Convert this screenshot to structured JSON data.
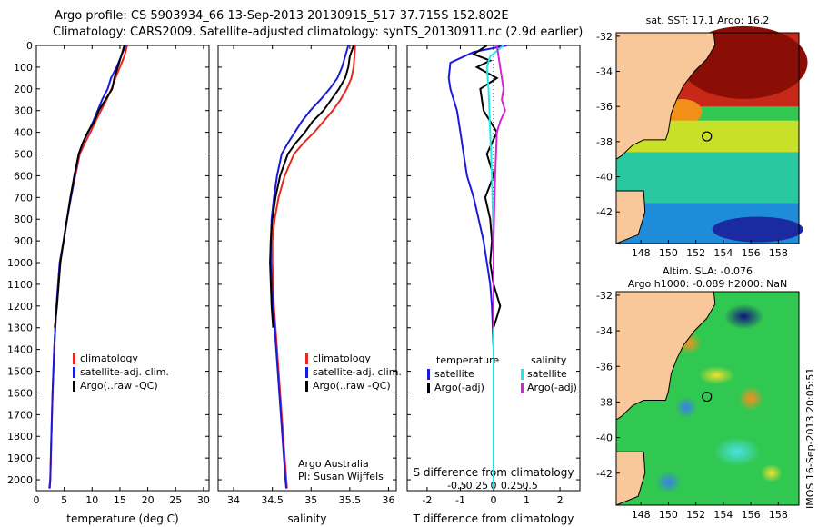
{
  "title_line1": "Argo profile: CS 5903934_66 13-Sep-2013 20130915_517 37.715S 152.802E",
  "title_line2": "Climatology: CARS2009. Satellite-adjusted climatology: synTS_20130911.nc (2.9d earlier)",
  "stamp": "IMOS 16-Sep-2013 20:05:51",
  "colors": {
    "climatology": "#e8281e",
    "satellite": "#1a1adc",
    "argo": "#000000",
    "sat_sal": "#22e8e8",
    "argo_sal": "#d228d2",
    "land": "#f8c89a"
  },
  "map1": {
    "title": "sat. SST: 17.1 Argo: 16.2",
    "ytick_labels": [
      "-32",
      "-34",
      "-36",
      "-38",
      "-40",
      "-42"
    ],
    "xtick_labels": [
      "148",
      "150",
      "152",
      "154",
      "156",
      "158"
    ],
    "argo_lon": 152.8,
    "argo_lat": -37.7
  },
  "map2": {
    "title_line1": "Altim. SLA: -0.076",
    "title_line2": "Argo h1000: -0.089 h2000: NaN",
    "ytick_labels": [
      "-32",
      "-34",
      "-36",
      "-38",
      "-40",
      "-42"
    ],
    "xtick_labels": [
      "148",
      "150",
      "152",
      "154",
      "156",
      "158"
    ],
    "argo_lon": 152.8,
    "argo_lat": -37.7
  },
  "chart_data": [
    {
      "type": "line",
      "xlabel": "temperature (deg C)",
      "xlim": [
        0,
        31
      ],
      "ylim": [
        2050,
        0
      ],
      "xtick_labels": [
        "0",
        "5",
        "10",
        "15",
        "20",
        "25",
        "30"
      ],
      "ytick_labels": [
        "0",
        "100",
        "200",
        "300",
        "400",
        "500",
        "600",
        "700",
        "800",
        "900",
        "1000",
        "1100",
        "1200",
        "1300",
        "1400",
        "1500",
        "1600",
        "1700",
        "1800",
        "1900",
        "2000"
      ],
      "legend": [
        "climatology",
        "satellite-adj. clim.",
        "Argo(..raw -QC)"
      ],
      "series": [
        {
          "name": "climatology",
          "color": "#e8281e",
          "x": [
            16.3,
            15.8,
            15.0,
            14.2,
            13.5,
            12.6,
            11.6,
            10.6,
            9.7,
            8.7,
            7.8,
            7.0,
            6.2,
            5.5,
            4.9,
            4.2,
            3.6,
            3.2,
            2.9,
            2.7,
            2.5,
            2.3
          ],
          "y": [
            0,
            50,
            100,
            150,
            200,
            250,
            300,
            350,
            400,
            450,
            500,
            600,
            700,
            800,
            900,
            1000,
            1200,
            1400,
            1600,
            1800,
            2000,
            2040
          ]
        },
        {
          "name": "satellite-adj. clim.",
          "color": "#1a1adc",
          "x": [
            16.0,
            15.2,
            14.4,
            13.4,
            12.8,
            11.8,
            11.0,
            10.2,
            9.3,
            8.3,
            7.6,
            6.9,
            6.2,
            5.5,
            4.9,
            4.2,
            3.6,
            3.2,
            2.9,
            2.7,
            2.5,
            2.4
          ],
          "y": [
            0,
            50,
            100,
            150,
            200,
            250,
            300,
            350,
            400,
            450,
            500,
            600,
            700,
            800,
            900,
            1000,
            1200,
            1400,
            1600,
            1800,
            2000,
            2040
          ]
        },
        {
          "name": "Argo(..raw -QC)",
          "color": "#000000",
          "x": [
            15.8,
            15.2,
            14.6,
            14.0,
            13.6,
            12.4,
            11.2,
            10.4,
            9.2,
            8.3,
            7.6,
            6.8,
            6.1,
            5.5,
            4.9,
            4.3,
            3.7,
            3.3
          ],
          "y": [
            0,
            50,
            100,
            150,
            200,
            250,
            300,
            350,
            400,
            450,
            500,
            600,
            700,
            800,
            900,
            1000,
            1200,
            1300
          ]
        }
      ]
    },
    {
      "type": "line",
      "xlabel": "salinity",
      "xlim": [
        33.8,
        36.1
      ],
      "ylim": [
        2050,
        0
      ],
      "xtick_labels": [
        "34",
        "34.5",
        "35",
        "35.5",
        "36"
      ],
      "legend": [
        "climatology",
        "satellite-adj. clim.",
        "Argo(..raw -QC)"
      ],
      "annotation": [
        "Argo Australia",
        "PI: Susan Wijffels"
      ],
      "series": [
        {
          "name": "climatology",
          "color": "#e8281e",
          "x": [
            35.57,
            35.56,
            35.55,
            35.52,
            35.46,
            35.38,
            35.28,
            35.16,
            35.04,
            34.9,
            34.78,
            34.66,
            34.58,
            34.53,
            34.5,
            34.5,
            34.52,
            34.56,
            34.6,
            34.64,
            34.68,
            34.69
          ],
          "y": [
            0,
            50,
            100,
            150,
            200,
            250,
            300,
            350,
            400,
            450,
            500,
            600,
            700,
            800,
            900,
            1000,
            1200,
            1400,
            1600,
            1800,
            2000,
            2040
          ]
        },
        {
          "name": "satellite-adj. clim.",
          "color": "#1a1adc",
          "x": [
            35.48,
            35.44,
            35.4,
            35.34,
            35.24,
            35.12,
            34.99,
            34.88,
            34.79,
            34.7,
            34.62,
            34.56,
            34.52,
            34.49,
            34.48,
            34.48,
            34.51,
            34.55,
            34.59,
            34.63,
            34.67,
            34.68
          ],
          "y": [
            0,
            50,
            100,
            150,
            200,
            250,
            300,
            350,
            400,
            450,
            500,
            600,
            700,
            800,
            900,
            1000,
            1200,
            1400,
            1600,
            1800,
            2000,
            2040
          ]
        },
        {
          "name": "Argo(..raw -QC)",
          "color": "#000000",
          "x": [
            35.55,
            35.5,
            35.48,
            35.44,
            35.36,
            35.26,
            35.16,
            35.02,
            34.92,
            34.8,
            34.7,
            34.6,
            34.54,
            34.5,
            34.48,
            34.47,
            34.49,
            34.51
          ],
          "y": [
            0,
            50,
            100,
            150,
            200,
            250,
            300,
            350,
            400,
            450,
            500,
            600,
            700,
            800,
            900,
            1000,
            1200,
            1300
          ]
        }
      ]
    },
    {
      "type": "line",
      "xlabel": "T difference from climatology",
      "xlabel2": "S difference from climatology",
      "xlim": [
        -2.6,
        2.6
      ],
      "ylim": [
        2050,
        0
      ],
      "xtick_labels": [
        "-2",
        "-1",
        "0",
        "1",
        "2"
      ],
      "xtick2_labels": [
        "-0.5",
        "-0.25",
        "0",
        "0.25",
        "0.5"
      ],
      "legend": [
        {
          "header": "temperature",
          "items": [
            "satellite",
            "Argo(-adj)"
          ]
        },
        {
          "header": "salinity",
          "items": [
            "satellite",
            "Argo(-adj)"
          ]
        }
      ],
      "series": [
        {
          "name": "satellite",
          "color": "#1a1adc",
          "x": [
            0.4,
            -0.6,
            -1.3,
            -1.35,
            -1.3,
            -1.1,
            -1.0,
            -0.9,
            -0.8,
            -0.6,
            -0.45,
            -0.3,
            -0.2,
            -0.1,
            -0.05,
            0,
            0,
            0
          ],
          "y": [
            0,
            30,
            80,
            150,
            200,
            300,
            400,
            500,
            600,
            700,
            800,
            900,
            1000,
            1100,
            1200,
            1400,
            1700,
            2040
          ]
        },
        {
          "name": "Argo(-adj)",
          "color": "#000000",
          "x": [
            -0.2,
            -0.6,
            -0.1,
            -0.5,
            0.1,
            -0.4,
            -0.3,
            0.1,
            -0.2,
            0,
            -0.25,
            -0.1,
            -0.05,
            -0.1,
            0,
            0.2,
            0.1,
            0
          ],
          "y": [
            0,
            40,
            70,
            100,
            150,
            200,
            300,
            400,
            500,
            600,
            700,
            800,
            900,
            1000,
            1100,
            1200,
            1250,
            1300
          ]
        },
        {
          "name": "satellite",
          "color": "#22e8e8",
          "x": [
            0.3,
            -0.1,
            -0.2,
            -0.15,
            -0.1,
            -0.05,
            -0.02,
            0,
            0,
            0
          ],
          "y": [
            0,
            50,
            100,
            200,
            400,
            600,
            800,
            1000,
            1500,
            2040
          ]
        },
        {
          "name": "Argo(-adj)",
          "color": "#d228d2",
          "x": [
            0.1,
            0.2,
            0.3,
            0.25,
            0.35,
            0.2,
            0.1,
            0.05,
            0,
            0
          ],
          "y": [
            0,
            100,
            200,
            250,
            300,
            350,
            400,
            600,
            900,
            1300
          ]
        }
      ]
    }
  ]
}
